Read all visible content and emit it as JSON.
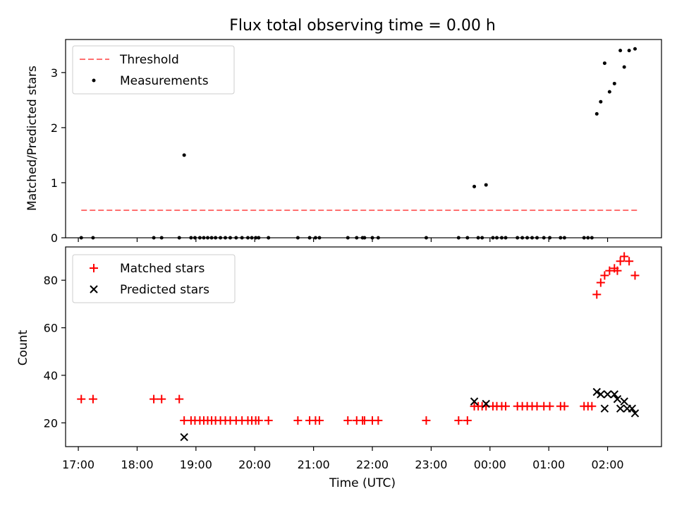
{
  "chart_data": [
    {
      "type": "scatter",
      "title": "Flux total observing time = 0.00 h",
      "xlabel": "",
      "ylabel": "Matched/Predicted stars",
      "xlim": [
        "16:47",
        "02:55"
      ],
      "ylim": [
        0,
        3.6
      ],
      "yticks": [
        "0",
        "1",
        "2",
        "3"
      ],
      "legend_position": "top-left",
      "series": [
        {
          "name": "Threshold",
          "kind": "line",
          "style": "dashed",
          "color": "#ff7070",
          "x": [
            "17:03",
            "02:30"
          ],
          "y": [
            0.5,
            0.5
          ]
        },
        {
          "name": "Measurements",
          "kind": "scatter",
          "color": "#000000",
          "points": [
            [
              "17:03",
              0
            ],
            [
              "17:15",
              0
            ],
            [
              "18:17",
              0
            ],
            [
              "18:25",
              0
            ],
            [
              "18:43",
              0
            ],
            [
              "18:48",
              1.5
            ],
            [
              "18:55",
              0
            ],
            [
              "18:59",
              0
            ],
            [
              "19:04",
              0
            ],
            [
              "19:08",
              0
            ],
            [
              "19:12",
              0
            ],
            [
              "19:16",
              0
            ],
            [
              "19:20",
              0
            ],
            [
              "19:25",
              0
            ],
            [
              "19:30",
              0
            ],
            [
              "19:35",
              0
            ],
            [
              "19:41",
              0
            ],
            [
              "19:47",
              0
            ],
            [
              "19:53",
              0
            ],
            [
              "19:57",
              0
            ],
            [
              "20:01",
              0
            ],
            [
              "20:04",
              0
            ],
            [
              "20:14",
              0
            ],
            [
              "20:44",
              0
            ],
            [
              "20:56",
              0
            ],
            [
              "21:02",
              0
            ],
            [
              "21:06",
              0
            ],
            [
              "21:35",
              0
            ],
            [
              "21:44",
              0
            ],
            [
              "21:50",
              0
            ],
            [
              "21:52",
              0
            ],
            [
              "22:00",
              0
            ],
            [
              "22:06",
              0
            ],
            [
              "22:55",
              0
            ],
            [
              "23:28",
              0
            ],
            [
              "23:37",
              0
            ],
            [
              "23:44",
              0.93
            ],
            [
              "23:48",
              0
            ],
            [
              "23:52",
              0
            ],
            [
              "23:56",
              0.96
            ],
            [
              "00:03",
              0
            ],
            [
              "00:07",
              0
            ],
            [
              "00:12",
              0
            ],
            [
              "00:16",
              0
            ],
            [
              "00:28",
              0
            ],
            [
              "00:33",
              0
            ],
            [
              "00:38",
              0
            ],
            [
              "00:43",
              0
            ],
            [
              "00:48",
              0
            ],
            [
              "00:55",
              0
            ],
            [
              "01:01",
              0
            ],
            [
              "01:12",
              0
            ],
            [
              "01:16",
              0
            ],
            [
              "01:36",
              0
            ],
            [
              "01:40",
              0
            ],
            [
              "01:44",
              0
            ],
            [
              "01:49",
              2.25
            ],
            [
              "01:53",
              2.47
            ],
            [
              "01:57",
              3.17
            ],
            [
              "02:02",
              2.65
            ],
            [
              "02:07",
              2.8
            ],
            [
              "02:13",
              3.4
            ],
            [
              "02:17",
              3.1
            ],
            [
              "02:22",
              3.4
            ],
            [
              "02:28",
              3.43
            ]
          ]
        }
      ]
    },
    {
      "type": "scatter",
      "title": "",
      "xlabel": "Time (UTC)",
      "ylabel": "Count",
      "xlim": [
        "16:47",
        "02:55"
      ],
      "ylim": [
        10,
        94
      ],
      "yticks": [
        "20",
        "40",
        "60",
        "80"
      ],
      "xticks": [
        "17:00",
        "18:00",
        "19:00",
        "20:00",
        "21:00",
        "22:00",
        "23:00",
        "00:00",
        "01:00",
        "02:00"
      ],
      "legend_position": "top-left",
      "series": [
        {
          "name": "Matched stars",
          "kind": "plus",
          "color": "#ff0000",
          "points": [
            [
              "17:03",
              30
            ],
            [
              "17:15",
              30
            ],
            [
              "18:17",
              30
            ],
            [
              "18:25",
              30
            ],
            [
              "18:43",
              30
            ],
            [
              "18:48",
              21
            ],
            [
              "18:55",
              21
            ],
            [
              "18:59",
              21
            ],
            [
              "19:04",
              21
            ],
            [
              "19:08",
              21
            ],
            [
              "19:12",
              21
            ],
            [
              "19:16",
              21
            ],
            [
              "19:20",
              21
            ],
            [
              "19:25",
              21
            ],
            [
              "19:30",
              21
            ],
            [
              "19:35",
              21
            ],
            [
              "19:41",
              21
            ],
            [
              "19:47",
              21
            ],
            [
              "19:53",
              21
            ],
            [
              "19:57",
              21
            ],
            [
              "20:01",
              21
            ],
            [
              "20:04",
              21
            ],
            [
              "20:14",
              21
            ],
            [
              "20:44",
              21
            ],
            [
              "20:56",
              21
            ],
            [
              "21:02",
              21
            ],
            [
              "21:06",
              21
            ],
            [
              "21:35",
              21
            ],
            [
              "21:44",
              21
            ],
            [
              "21:50",
              21
            ],
            [
              "21:52",
              21
            ],
            [
              "22:00",
              21
            ],
            [
              "22:06",
              21
            ],
            [
              "22:55",
              21
            ],
            [
              "23:28",
              21
            ],
            [
              "23:37",
              21
            ],
            [
              "23:44",
              27
            ],
            [
              "23:48",
              27
            ],
            [
              "23:52",
              27
            ],
            [
              "23:56",
              27
            ],
            [
              "00:03",
              27
            ],
            [
              "00:07",
              27
            ],
            [
              "00:12",
              27
            ],
            [
              "00:16",
              27
            ],
            [
              "00:28",
              27
            ],
            [
              "00:33",
              27
            ],
            [
              "00:38",
              27
            ],
            [
              "00:43",
              27
            ],
            [
              "00:48",
              27
            ],
            [
              "00:55",
              27
            ],
            [
              "01:01",
              27
            ],
            [
              "01:12",
              27
            ],
            [
              "01:16",
              27
            ],
            [
              "01:36",
              27
            ],
            [
              "01:40",
              27
            ],
            [
              "01:44",
              27
            ],
            [
              "01:49",
              74
            ],
            [
              "01:53",
              79
            ],
            [
              "01:57",
              82
            ],
            [
              "02:02",
              84
            ],
            [
              "02:07",
              85
            ],
            [
              "02:10",
              84
            ],
            [
              "02:13",
              88
            ],
            [
              "02:17",
              90
            ],
            [
              "02:22",
              88
            ],
            [
              "02:28",
              82
            ]
          ]
        },
        {
          "name": "Predicted stars",
          "kind": "x",
          "color": "#000000",
          "points": [
            [
              "18:48",
              14
            ],
            [
              "23:44",
              29
            ],
            [
              "23:56",
              28
            ],
            [
              "01:49",
              33
            ],
            [
              "01:53",
              32
            ],
            [
              "01:57",
              26
            ],
            [
              "02:00",
              32
            ],
            [
              "02:07",
              32
            ],
            [
              "02:10",
              30
            ],
            [
              "02:13",
              26
            ],
            [
              "02:17",
              29
            ],
            [
              "02:20",
              26
            ],
            [
              "02:25",
              26
            ],
            [
              "02:28",
              24
            ]
          ]
        }
      ]
    }
  ]
}
